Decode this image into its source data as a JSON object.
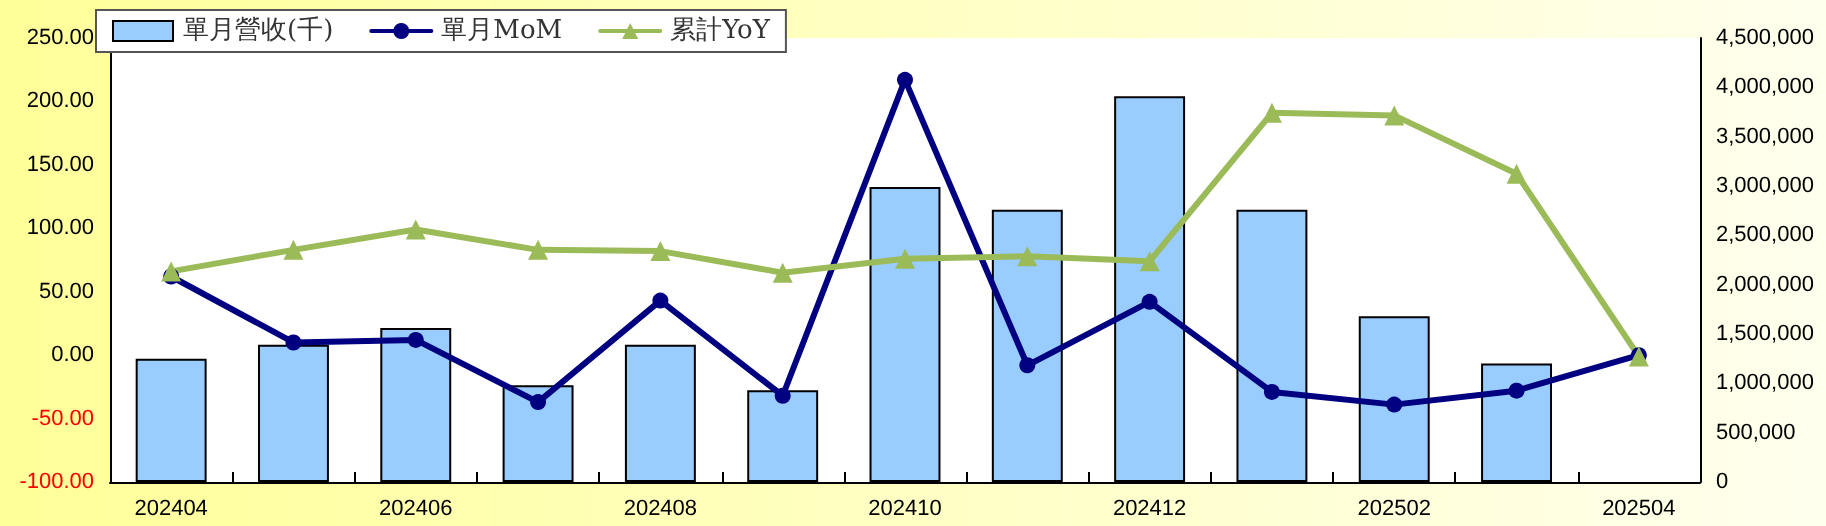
{
  "chart_data": {
    "type": "bar",
    "categories": [
      "202404",
      null,
      "202406",
      null,
      "202408",
      null,
      "202410",
      null,
      "202412",
      null,
      "202502",
      null,
      "202504"
    ],
    "series": [
      {
        "name": "單月營收(千)",
        "axis": "y2",
        "color": "#99ccff",
        "values": [
          1250000,
          1390000,
          1560000,
          980000,
          1390000,
          930000,
          2990000,
          2760000,
          3910000,
          2760000,
          1680000,
          1200000,
          null
        ]
      },
      {
        "name": "單月MoM",
        "type": "line",
        "marker": "circle",
        "color": "#000080",
        "values": [
          62,
          10,
          12,
          -37,
          43,
          -32,
          217,
          -8,
          42,
          -29,
          -39,
          -28,
          0
        ]
      },
      {
        "name": "累計YoY",
        "type": "line",
        "marker": "triangle",
        "color": "#9bbb59",
        "values": [
          66,
          83,
          99,
          83,
          82,
          65,
          76,
          78,
          74,
          191,
          189,
          143,
          -1
        ]
      }
    ],
    "ylim": [
      -100,
      250
    ],
    "yticks": [
      {
        "value": -100,
        "label": "-100.00"
      },
      {
        "value": -50,
        "label": "-50.00"
      },
      {
        "value": 0,
        "label": "0.00"
      },
      {
        "value": 50,
        "label": "50.00"
      },
      {
        "value": 100,
        "label": "100.00"
      },
      {
        "value": 150,
        "label": "150.00"
      },
      {
        "value": 200,
        "label": "200.00"
      },
      {
        "value": 250,
        "label": "250.00"
      }
    ],
    "y2lim": [
      0,
      4500000
    ],
    "y2ticks": [
      0,
      {
        "value": 500000,
        "label": "500,000"
      },
      {
        "value": 1000000,
        "label": "1,000,000"
      },
      {
        "value": 1500000,
        "label": "1,500,000"
      },
      {
        "value": 2000000,
        "label": "2,000,000"
      },
      {
        "value": 2500000,
        "label": "2,500,000"
      },
      {
        "value": 3000000,
        "label": "3,000,000"
      },
      {
        "value": 3500000,
        "label": "3,500,000"
      },
      {
        "value": 4000000,
        "label": "4,000,000"
      },
      {
        "value": 4500000,
        "label": "4,500,000"
      }
    ],
    "grid": false,
    "legend": "top left"
  }
}
